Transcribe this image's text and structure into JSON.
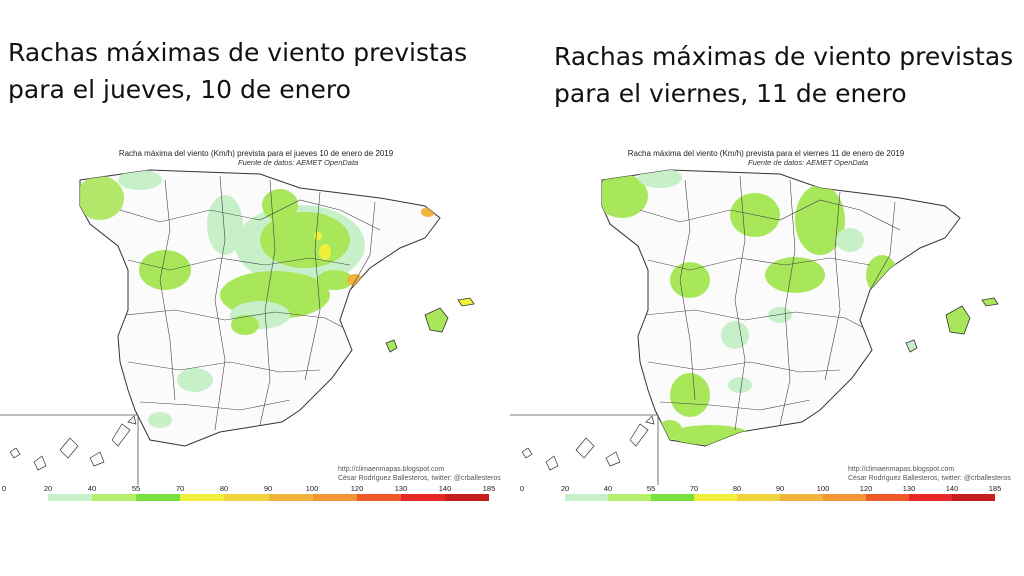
{
  "headlines": {
    "left": [
      "Rachas máximas de viento previstas",
      "para el jueves, 10 de enero"
    ],
    "right": [
      "Rachas máximas de viento previstas",
      "para el viernes, 11 de enero"
    ]
  },
  "maps": [
    {
      "title": "Racha máxima del viento (Km/h) prevista para el jueves 10 de enero de 2019",
      "source": "Fuente de datos: AEMET OpenData",
      "credit_url": "http://climaenmapas.blogspot.com",
      "credit_author": "César Rodríguez Ballesteros, twitter: @crballesteros"
    },
    {
      "title": "Racha máxima del viento (Km/h) prevista para el viernes 11 de enero de 2019",
      "source": "Fuente de datos: AEMET OpenData",
      "credit_url": "http://climaenmapas.blogspot.com",
      "credit_author": "César Rodríguez Ballesteros, twitter: @crballesteros"
    }
  ],
  "legend": {
    "ticks": [
      "0",
      "20",
      "40",
      "55",
      "70",
      "80",
      "90",
      "100",
      "120",
      "130",
      "140",
      "185"
    ],
    "colors": [
      "#ffffff",
      "#c8f0c8",
      "#b4ee6a",
      "#78e03c",
      "#f0f03c",
      "#f0d23c",
      "#f0b43c",
      "#f09632",
      "#f05a28",
      "#e62828",
      "#c81e1e"
    ]
  },
  "zone_colors": {
    "light_green": "#c8f0c8",
    "green": "#a8e65a",
    "yellow": "#f0f03c",
    "orange": "#f0b43c"
  }
}
